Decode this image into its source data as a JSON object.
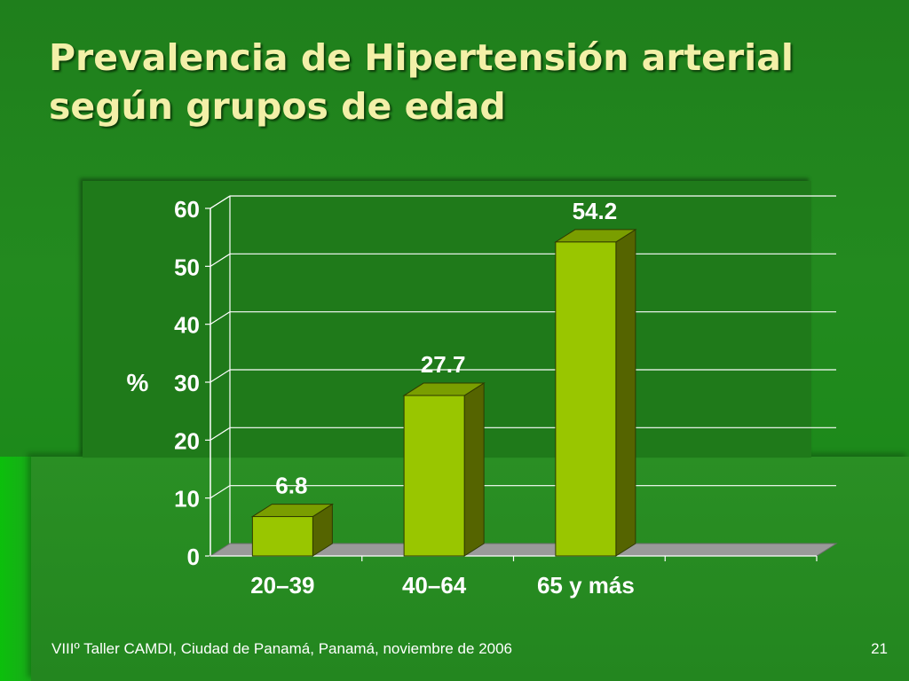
{
  "slide": {
    "title_line1": "Prevalencia de Hipertensión arterial",
    "title_line2": "según grupos de edad",
    "footer": "VIIIº Taller CAMDI, Ciudad de Panamá, Panamá, noviembre de 2006",
    "page_number": "21"
  },
  "chart_data": {
    "type": "bar",
    "categories": [
      "20–39",
      "40–64",
      "65 y más"
    ],
    "values": [
      6.8,
      27.7,
      54.2
    ],
    "value_labels": [
      "6.8",
      "27.7",
      "54.2"
    ],
    "title": "",
    "xlabel": "",
    "ylabel": "%",
    "ylim": [
      0,
      60
    ],
    "yticks": [
      0,
      10,
      20,
      30,
      40,
      50,
      60
    ],
    "grid": true,
    "style": "3d",
    "colors": {
      "bar_front": "#99c600",
      "bar_top": "#7a9e00",
      "bar_side": "#556400",
      "floor": "#9a9a9a",
      "gridline": "#ffffff",
      "text": "#ffffff"
    }
  }
}
